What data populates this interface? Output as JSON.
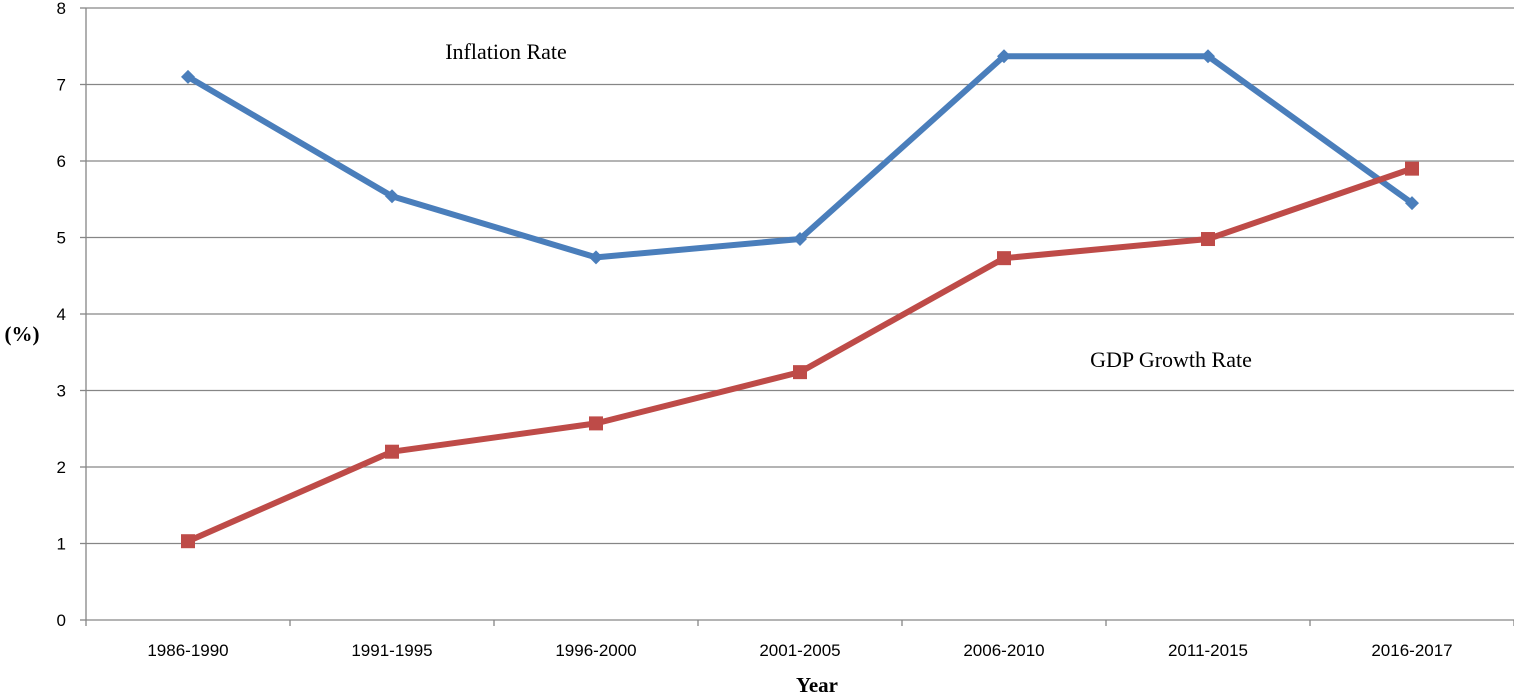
{
  "chart_data": {
    "type": "line",
    "categories": [
      "1986-1990",
      "1991-1995",
      "1996-2000",
      "2001-2005",
      "2006-2010",
      "2011-2015",
      "2016-2017"
    ],
    "series": [
      {
        "name": "Inflation Rate",
        "values": [
          7.1,
          5.54,
          4.74,
          4.98,
          7.37,
          7.37,
          5.45
        ],
        "color": "#4a7ebb",
        "marker": "diamond"
      },
      {
        "name": "GDP Growth Rate",
        "values": [
          1.03,
          2.2,
          2.57,
          3.24,
          4.73,
          4.98,
          5.9
        ],
        "color": "#be4b48",
        "marker": "square"
      }
    ],
    "xlabel": "Year",
    "ylabel": "(%)",
    "ylim": [
      0,
      8
    ],
    "yticks": [
      "0",
      "1",
      "2",
      "3",
      "4",
      "5",
      "6",
      "7",
      "8"
    ],
    "grid": true,
    "gridline_color": "#868686",
    "legend": "none"
  }
}
